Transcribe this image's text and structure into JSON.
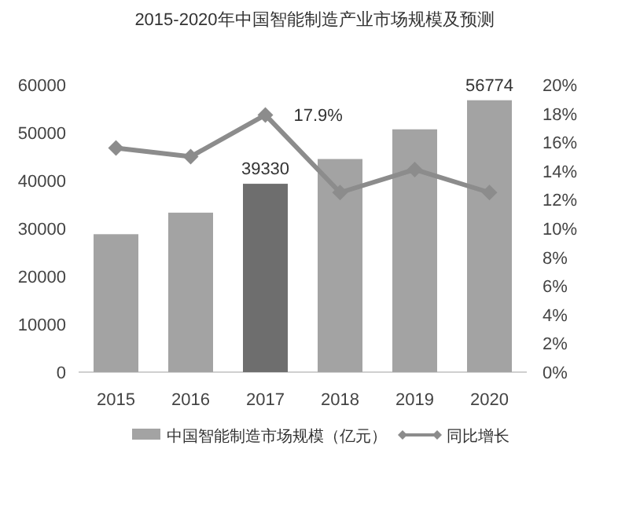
{
  "chart_data": {
    "type": "bar",
    "title": "2015-2020年中国智能制造产业市场规模及预测",
    "categories": [
      "2015",
      "2016",
      "2017",
      "2018",
      "2019",
      "2020"
    ],
    "ylim": [
      0,
      60000
    ],
    "yticks": [
      0,
      10000,
      20000,
      30000,
      40000,
      50000,
      60000
    ],
    "y2lim": [
      0,
      20
    ],
    "y2ticks": [
      {
        "value": 0,
        "label": "0%"
      },
      {
        "value": 2,
        "label": "2%"
      },
      {
        "value": 4,
        "label": "4%"
      },
      {
        "value": 6,
        "label": "6%"
      },
      {
        "value": 8,
        "label": "8%"
      },
      {
        "value": 10,
        "label": "10%"
      },
      {
        "value": 12,
        "label": "12%"
      },
      {
        "value": 14,
        "label": "14%"
      },
      {
        "value": 16,
        "label": "16%"
      },
      {
        "value": 18,
        "label": "18%"
      },
      {
        "value": 20,
        "label": "20%"
      }
    ],
    "legend": "bottom",
    "grid": false,
    "series": [
      {
        "name": "中国智能制造市场规模（亿元）",
        "color": "#a3a3a3",
        "colors": [
          "#a3a3a3",
          "#a3a3a3",
          "#6e6e6e",
          "#a3a3a3",
          "#a3a3a3",
          "#a3a3a3"
        ],
        "values": [
          28800,
          33300,
          39330,
          44500,
          50700,
          56774
        ],
        "value_labels": [
          null,
          null,
          "39330",
          null,
          null,
          "56774"
        ]
      },
      {
        "name": "同比增长",
        "type": "line",
        "axis": "y2",
        "color": "#8c8c8c",
        "marker": "diamond",
        "values": [
          15.6,
          15.0,
          17.9,
          12.5,
          14.1,
          12.5
        ],
        "value_labels": [
          null,
          null,
          "17.9%",
          null,
          null,
          null
        ]
      }
    ]
  }
}
